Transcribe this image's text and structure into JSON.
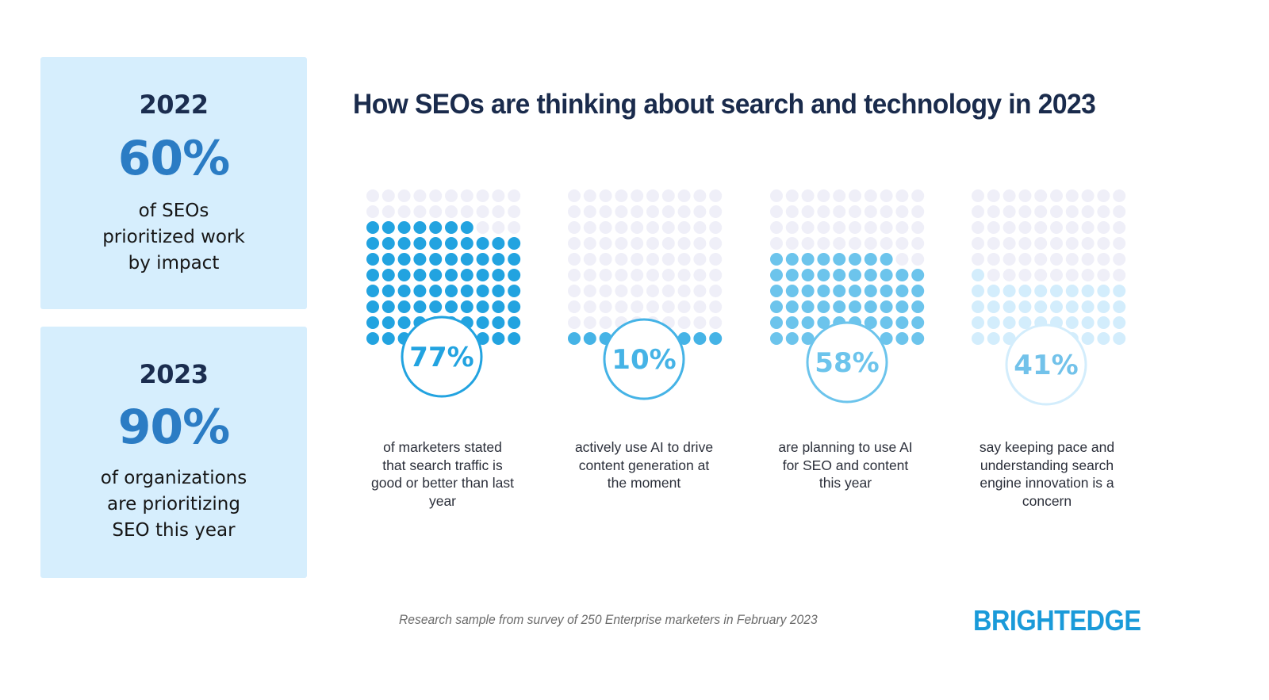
{
  "stat_cards": [
    {
      "year": "2022",
      "percent": "60%",
      "description_lines": [
        "of SEOs",
        "prioritized work",
        "by impact"
      ]
    },
    {
      "year": "2023",
      "percent": "90%",
      "description_lines": [
        "of organizations",
        "are prioritizing",
        "SEO this year"
      ]
    }
  ],
  "title": "How SEOs are thinking about search and technology in 2023",
  "colors": {
    "empty_dot": "#efeff8",
    "card_bg": "#d6eefd",
    "title": "#1a2b4c",
    "stat_percent": "#2b7cc4",
    "brand": "#1a9ad9"
  },
  "chart_data": {
    "type": "waffle",
    "title": "How SEOs are thinking about search and technology in 2023",
    "grid": {
      "rows": 10,
      "cols": 10,
      "fill_from": "bottom"
    },
    "series": [
      {
        "name": "search traffic good or better",
        "value": 77,
        "label": "77%",
        "color": "#22a3e0",
        "description_lines": [
          "of marketers stated",
          "that search traffic is",
          "good or better than last",
          "year"
        ]
      },
      {
        "name": "use AI for content",
        "value": 10,
        "label": "10%",
        "color": "#45b3e6",
        "description_lines": [
          "actively use AI to drive",
          "content generation at",
          "the moment"
        ]
      },
      {
        "name": "planning AI for SEO",
        "value": 58,
        "label": "58%",
        "color": "#6cc4ec",
        "description_lines": [
          "are planning to use AI",
          "for SEO and content",
          "this year"
        ]
      },
      {
        "name": "search innovation concern",
        "value": 41,
        "label": "41%",
        "color": "#d3edfc",
        "text_color": "#72c2ea",
        "ring_color": "#d3edfc",
        "description_lines": [
          "say keeping pace and",
          "understanding search",
          "engine innovation is a",
          "concern"
        ]
      }
    ]
  },
  "footer": {
    "note": "Research sample from survey of 250 Enterprise marketers in February 2023",
    "brand": "BRIGHTEDGE"
  }
}
